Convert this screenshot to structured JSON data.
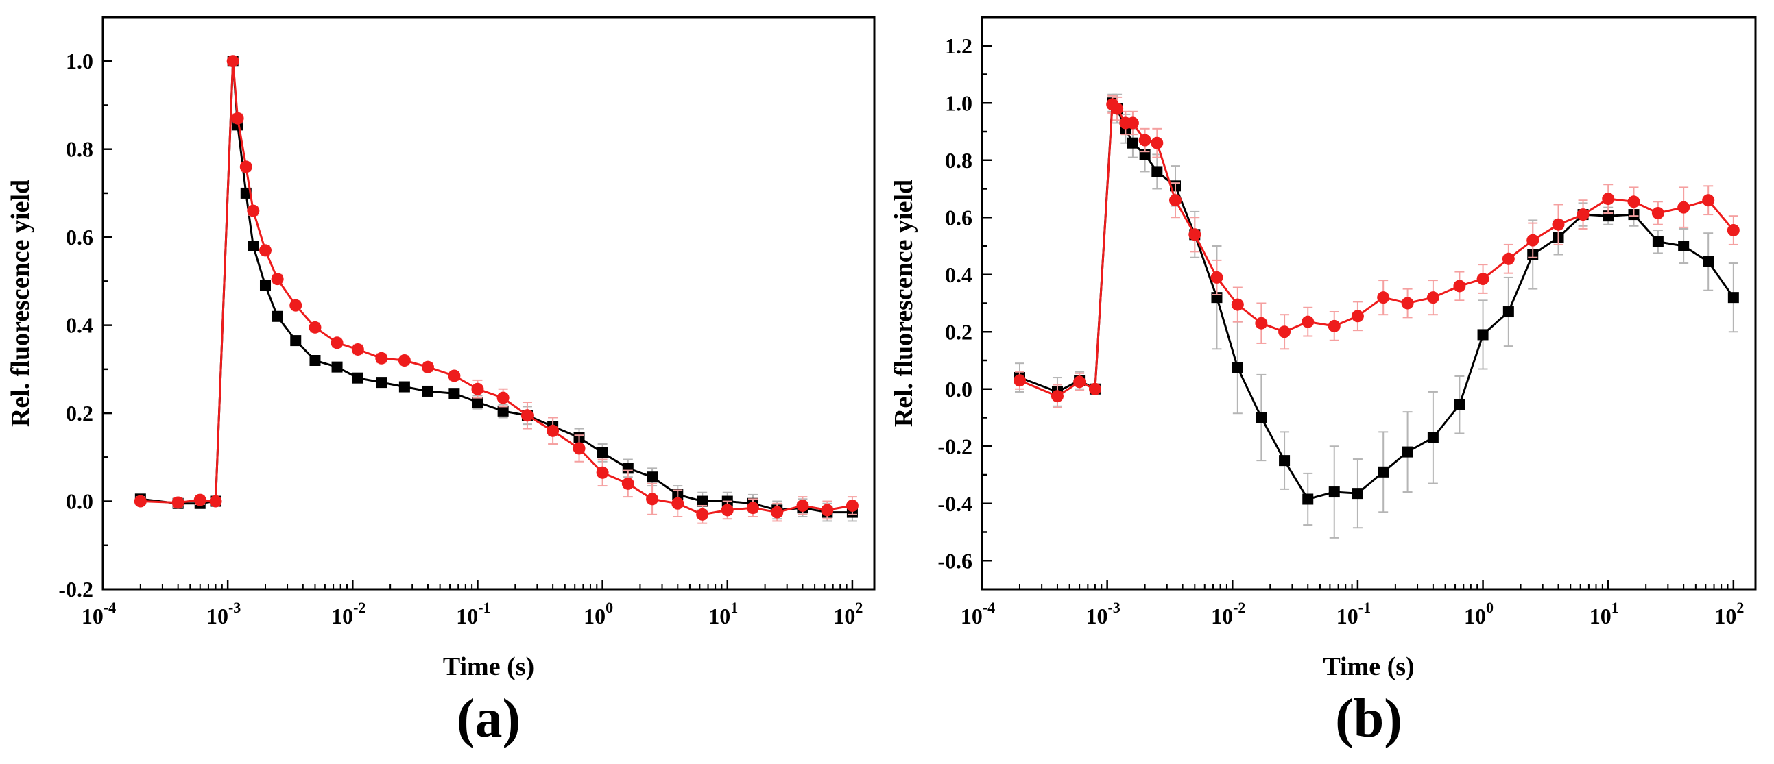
{
  "panels": [
    {
      "panel_label": "(a)",
      "xlabel": "Time (s)",
      "ylabel": "Rel. fluorescence yield",
      "xtick_labels": [
        {
          "base": "10",
          "exp": "-4"
        },
        {
          "base": "10",
          "exp": "-3"
        },
        {
          "base": "10",
          "exp": "-2"
        },
        {
          "base": "10",
          "exp": "-1"
        },
        {
          "base": "10",
          "exp": "0"
        },
        {
          "base": "10",
          "exp": "1"
        },
        {
          "base": "10",
          "exp": "2"
        }
      ],
      "ytick_labels": [
        "-0.2",
        "0.0",
        "0.2",
        "0.4",
        "0.6",
        "0.8",
        "1.0"
      ]
    },
    {
      "panel_label": "(b)",
      "xlabel": "Time (s)",
      "ylabel": "Rel. fluorescence yield",
      "xtick_labels": [
        {
          "base": "10",
          "exp": "-4"
        },
        {
          "base": "10",
          "exp": "-3"
        },
        {
          "base": "10",
          "exp": "-2"
        },
        {
          "base": "10",
          "exp": "-1"
        },
        {
          "base": "10",
          "exp": "0"
        },
        {
          "base": "10",
          "exp": "1"
        },
        {
          "base": "10",
          "exp": "2"
        }
      ],
      "ytick_labels": [
        "-0.6",
        "-0.4",
        "-0.2",
        "0.0",
        "0.2",
        "0.4",
        "0.6",
        "0.8",
        "1.0",
        "1.2"
      ]
    }
  ],
  "chart_data": [
    {
      "type": "line",
      "title": "",
      "xlabel": "Time (s)",
      "ylabel": "Rel. fluorescence yield",
      "xscale": "log",
      "xlim": [
        0.0001,
        150
      ],
      "ylim": [
        -0.2,
        1.1
      ],
      "yticks": [
        -0.2,
        0.0,
        0.2,
        0.4,
        0.6,
        0.8,
        1.0
      ],
      "xticks": [
        0.0001,
        0.001,
        0.01,
        0.1,
        1,
        10,
        100
      ],
      "grid": false,
      "legend": "none",
      "series": [
        {
          "color": "#000000",
          "marker": "square",
          "points": [
            {
              "x": 0.0002,
              "y": 0.005,
              "err": 0.01
            },
            {
              "x": 0.0004,
              "y": -0.005,
              "err": 0.01
            },
            {
              "x": 0.0006,
              "y": -0.005,
              "err": 0.01
            },
            {
              "x": 0.0008,
              "y": 0.0,
              "err": 0.0
            },
            {
              "x": 0.0011,
              "y": 1.0,
              "err": 0.0
            },
            {
              "x": 0.0012,
              "y": 0.855,
              "err": 0.01
            },
            {
              "x": 0.0014,
              "y": 0.7,
              "err": 0.01
            },
            {
              "x": 0.0016,
              "y": 0.58,
              "err": 0.01
            },
            {
              "x": 0.002,
              "y": 0.49,
              "err": 0.01
            },
            {
              "x": 0.0025,
              "y": 0.42,
              "err": 0.01
            },
            {
              "x": 0.0035,
              "y": 0.365,
              "err": 0.01
            },
            {
              "x": 0.005,
              "y": 0.32,
              "err": 0.01
            },
            {
              "x": 0.0075,
              "y": 0.305,
              "err": 0.01
            },
            {
              "x": 0.011,
              "y": 0.28,
              "err": 0.01
            },
            {
              "x": 0.017,
              "y": 0.27,
              "err": 0.01
            },
            {
              "x": 0.026,
              "y": 0.26,
              "err": 0.01
            },
            {
              "x": 0.04,
              "y": 0.25,
              "err": 0.01
            },
            {
              "x": 0.065,
              "y": 0.245,
              "err": 0.01
            },
            {
              "x": 0.1,
              "y": 0.225,
              "err": 0.015
            },
            {
              "x": 0.16,
              "y": 0.205,
              "err": 0.015
            },
            {
              "x": 0.25,
              "y": 0.195,
              "err": 0.02
            },
            {
              "x": 0.4,
              "y": 0.17,
              "err": 0.02
            },
            {
              "x": 0.65,
              "y": 0.145,
              "err": 0.02
            },
            {
              "x": 1.0,
              "y": 0.11,
              "err": 0.02
            },
            {
              "x": 1.6,
              "y": 0.075,
              "err": 0.02
            },
            {
              "x": 2.5,
              "y": 0.055,
              "err": 0.02
            },
            {
              "x": 4.0,
              "y": 0.015,
              "err": 0.02
            },
            {
              "x": 6.3,
              "y": 0.0,
              "err": 0.02
            },
            {
              "x": 10,
              "y": 0.0,
              "err": 0.02
            },
            {
              "x": 16,
              "y": -0.005,
              "err": 0.02
            },
            {
              "x": 25,
              "y": -0.02,
              "err": 0.02
            },
            {
              "x": 40,
              "y": -0.015,
              "err": 0.02
            },
            {
              "x": 63,
              "y": -0.025,
              "err": 0.02
            },
            {
              "x": 100,
              "y": -0.025,
              "err": 0.02
            }
          ]
        },
        {
          "color": "#ee1c1c",
          "marker": "circle",
          "points": [
            {
              "x": 0.0002,
              "y": 0.0,
              "err": 0.01
            },
            {
              "x": 0.0004,
              "y": -0.003,
              "err": 0.01
            },
            {
              "x": 0.0006,
              "y": 0.003,
              "err": 0.01
            },
            {
              "x": 0.0008,
              "y": 0.0,
              "err": 0.0
            },
            {
              "x": 0.0011,
              "y": 1.0,
              "err": 0.0
            },
            {
              "x": 0.0012,
              "y": 0.87,
              "err": 0.01
            },
            {
              "x": 0.0014,
              "y": 0.76,
              "err": 0.01
            },
            {
              "x": 0.0016,
              "y": 0.66,
              "err": 0.01
            },
            {
              "x": 0.002,
              "y": 0.57,
              "err": 0.01
            },
            {
              "x": 0.0025,
              "y": 0.505,
              "err": 0.01
            },
            {
              "x": 0.0035,
              "y": 0.445,
              "err": 0.01
            },
            {
              "x": 0.005,
              "y": 0.395,
              "err": 0.01
            },
            {
              "x": 0.0075,
              "y": 0.36,
              "err": 0.01
            },
            {
              "x": 0.011,
              "y": 0.345,
              "err": 0.01
            },
            {
              "x": 0.017,
              "y": 0.325,
              "err": 0.01
            },
            {
              "x": 0.026,
              "y": 0.32,
              "err": 0.01
            },
            {
              "x": 0.04,
              "y": 0.305,
              "err": 0.01
            },
            {
              "x": 0.065,
              "y": 0.285,
              "err": 0.01
            },
            {
              "x": 0.1,
              "y": 0.255,
              "err": 0.02
            },
            {
              "x": 0.16,
              "y": 0.235,
              "err": 0.02
            },
            {
              "x": 0.25,
              "y": 0.195,
              "err": 0.03
            },
            {
              "x": 0.4,
              "y": 0.16,
              "err": 0.03
            },
            {
              "x": 0.65,
              "y": 0.12,
              "err": 0.03
            },
            {
              "x": 1.0,
              "y": 0.065,
              "err": 0.03
            },
            {
              "x": 1.6,
              "y": 0.04,
              "err": 0.03
            },
            {
              "x": 2.5,
              "y": 0.005,
              "err": 0.035
            },
            {
              "x": 4.0,
              "y": -0.005,
              "err": 0.03
            },
            {
              "x": 6.3,
              "y": -0.03,
              "err": 0.02
            },
            {
              "x": 10,
              "y": -0.02,
              "err": 0.02
            },
            {
              "x": 16,
              "y": -0.015,
              "err": 0.02
            },
            {
              "x": 25,
              "y": -0.025,
              "err": 0.02
            },
            {
              "x": 40,
              "y": -0.01,
              "err": 0.02
            },
            {
              "x": 63,
              "y": -0.02,
              "err": 0.02
            },
            {
              "x": 100,
              "y": -0.01,
              "err": 0.02
            }
          ]
        }
      ]
    },
    {
      "type": "line",
      "title": "",
      "xlabel": "Time (s)",
      "ylabel": "Rel. fluorescence yield",
      "xscale": "log",
      "xlim": [
        0.0001,
        150
      ],
      "ylim": [
        -0.7,
        1.3
      ],
      "yticks": [
        -0.6,
        -0.4,
        -0.2,
        0.0,
        0.2,
        0.4,
        0.6,
        0.8,
        1.0,
        1.2
      ],
      "xticks": [
        0.0001,
        0.001,
        0.01,
        0.1,
        1,
        10,
        100
      ],
      "grid": false,
      "legend": "none",
      "series": [
        {
          "color": "#000000",
          "marker": "square",
          "points": [
            {
              "x": 0.0002,
              "y": 0.04,
              "err": 0.05
            },
            {
              "x": 0.0004,
              "y": -0.01,
              "err": 0.05
            },
            {
              "x": 0.0006,
              "y": 0.03,
              "err": 0.03
            },
            {
              "x": 0.0008,
              "y": 0.0,
              "err": 0.0
            },
            {
              "x": 0.0011,
              "y": 1.0,
              "err": 0.03
            },
            {
              "x": 0.0012,
              "y": 0.98,
              "err": 0.05
            },
            {
              "x": 0.0014,
              "y": 0.91,
              "err": 0.05
            },
            {
              "x": 0.0016,
              "y": 0.86,
              "err": 0.05
            },
            {
              "x": 0.002,
              "y": 0.82,
              "err": 0.06
            },
            {
              "x": 0.0025,
              "y": 0.76,
              "err": 0.06
            },
            {
              "x": 0.0035,
              "y": 0.71,
              "err": 0.07
            },
            {
              "x": 0.005,
              "y": 0.54,
              "err": 0.08
            },
            {
              "x": 0.0075,
              "y": 0.32,
              "err": 0.18
            },
            {
              "x": 0.011,
              "y": 0.075,
              "err": 0.16
            },
            {
              "x": 0.017,
              "y": -0.1,
              "err": 0.15
            },
            {
              "x": 0.026,
              "y": -0.25,
              "err": 0.1
            },
            {
              "x": 0.04,
              "y": -0.385,
              "err": 0.09
            },
            {
              "x": 0.065,
              "y": -0.36,
              "err": 0.16
            },
            {
              "x": 0.1,
              "y": -0.365,
              "err": 0.12
            },
            {
              "x": 0.16,
              "y": -0.29,
              "err": 0.14
            },
            {
              "x": 0.25,
              "y": -0.22,
              "err": 0.14
            },
            {
              "x": 0.4,
              "y": -0.17,
              "err": 0.16
            },
            {
              "x": 0.65,
              "y": -0.055,
              "err": 0.1
            },
            {
              "x": 1.0,
              "y": 0.19,
              "err": 0.12
            },
            {
              "x": 1.6,
              "y": 0.27,
              "err": 0.12
            },
            {
              "x": 2.5,
              "y": 0.47,
              "err": 0.12
            },
            {
              "x": 4.0,
              "y": 0.53,
              "err": 0.06
            },
            {
              "x": 6.3,
              "y": 0.61,
              "err": 0.04
            },
            {
              "x": 10,
              "y": 0.605,
              "err": 0.03
            },
            {
              "x": 16,
              "y": 0.61,
              "err": 0.04
            },
            {
              "x": 25,
              "y": 0.515,
              "err": 0.04
            },
            {
              "x": 40,
              "y": 0.5,
              "err": 0.06
            },
            {
              "x": 63,
              "y": 0.445,
              "err": 0.1
            },
            {
              "x": 100,
              "y": 0.32,
              "err": 0.12
            }
          ]
        },
        {
          "color": "#ee1c1c",
          "marker": "circle",
          "points": [
            {
              "x": 0.0002,
              "y": 0.03,
              "err": 0.03
            },
            {
              "x": 0.0004,
              "y": -0.025,
              "err": 0.04
            },
            {
              "x": 0.0006,
              "y": 0.025,
              "err": 0.03
            },
            {
              "x": 0.0008,
              "y": 0.0,
              "err": 0.0
            },
            {
              "x": 0.0011,
              "y": 0.995,
              "err": 0.03
            },
            {
              "x": 0.0012,
              "y": 0.98,
              "err": 0.04
            },
            {
              "x": 0.0014,
              "y": 0.93,
              "err": 0.04
            },
            {
              "x": 0.0016,
              "y": 0.93,
              "err": 0.04
            },
            {
              "x": 0.002,
              "y": 0.87,
              "err": 0.04
            },
            {
              "x": 0.0025,
              "y": 0.86,
              "err": 0.05
            },
            {
              "x": 0.0035,
              "y": 0.66,
              "err": 0.06
            },
            {
              "x": 0.005,
              "y": 0.54,
              "err": 0.06
            },
            {
              "x": 0.0075,
              "y": 0.39,
              "err": 0.06
            },
            {
              "x": 0.011,
              "y": 0.295,
              "err": 0.06
            },
            {
              "x": 0.017,
              "y": 0.23,
              "err": 0.07
            },
            {
              "x": 0.026,
              "y": 0.2,
              "err": 0.06
            },
            {
              "x": 0.04,
              "y": 0.235,
              "err": 0.05
            },
            {
              "x": 0.065,
              "y": 0.22,
              "err": 0.05
            },
            {
              "x": 0.1,
              "y": 0.255,
              "err": 0.05
            },
            {
              "x": 0.16,
              "y": 0.32,
              "err": 0.06
            },
            {
              "x": 0.25,
              "y": 0.3,
              "err": 0.05
            },
            {
              "x": 0.4,
              "y": 0.32,
              "err": 0.06
            },
            {
              "x": 0.65,
              "y": 0.36,
              "err": 0.05
            },
            {
              "x": 1.0,
              "y": 0.385,
              "err": 0.05
            },
            {
              "x": 1.6,
              "y": 0.455,
              "err": 0.05
            },
            {
              "x": 2.5,
              "y": 0.52,
              "err": 0.06
            },
            {
              "x": 4.0,
              "y": 0.575,
              "err": 0.07
            },
            {
              "x": 6.3,
              "y": 0.61,
              "err": 0.05
            },
            {
              "x": 10,
              "y": 0.665,
              "err": 0.05
            },
            {
              "x": 16,
              "y": 0.655,
              "err": 0.05
            },
            {
              "x": 25,
              "y": 0.615,
              "err": 0.04
            },
            {
              "x": 40,
              "y": 0.635,
              "err": 0.07
            },
            {
              "x": 63,
              "y": 0.66,
              "err": 0.05
            },
            {
              "x": 100,
              "y": 0.555,
              "err": 0.05
            }
          ]
        }
      ]
    }
  ]
}
